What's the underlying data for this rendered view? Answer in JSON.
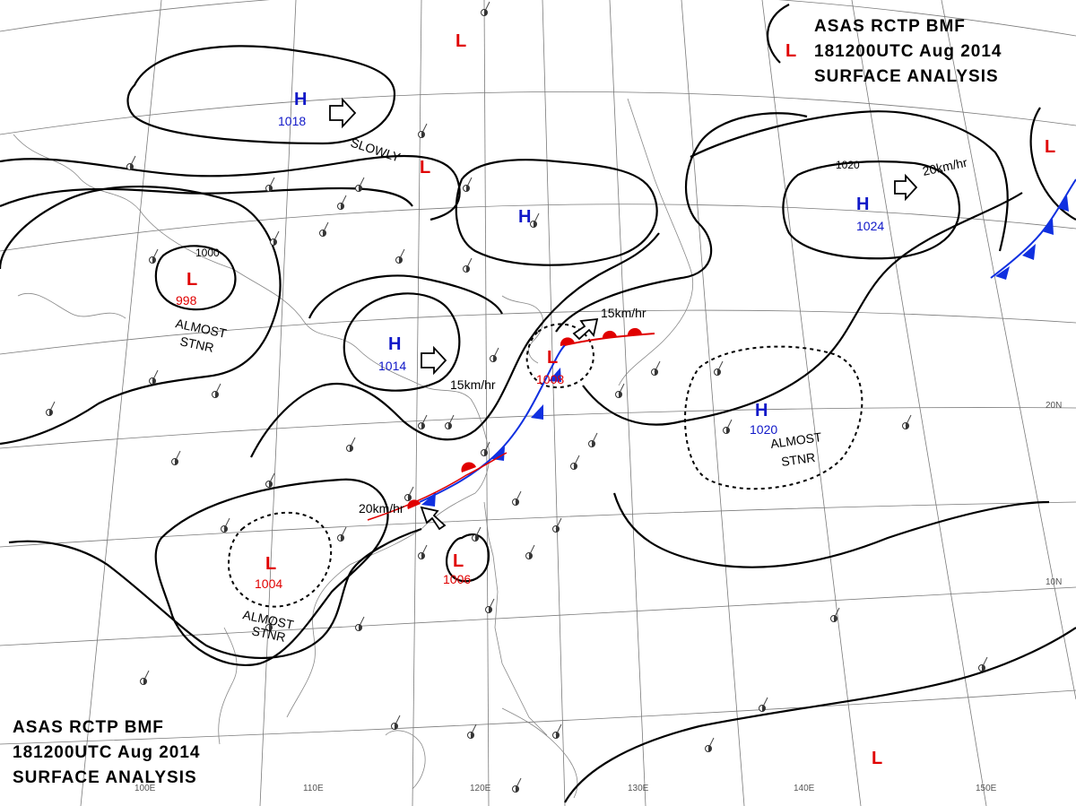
{
  "header_top": {
    "line1": "ASAS    RCTP    BMF",
    "line2": "181200UTC    Aug    2014",
    "line3": "SURFACE  ANALYSIS"
  },
  "header_bottom": {
    "line1": "ASAS    RCTP    BMF",
    "line2": "181200UTC    Aug    2014",
    "line3": "SURFACE  ANALYSIS"
  },
  "pressure_centers": [
    {
      "type": "H",
      "value": "1018"
    },
    {
      "type": "H",
      "value": "1014"
    },
    {
      "type": "H",
      "value": "1020"
    },
    {
      "type": "H",
      "value": "1024"
    },
    {
      "type": "H",
      "value": ""
    },
    {
      "type": "L",
      "value": "998"
    },
    {
      "type": "L",
      "value": "1008"
    },
    {
      "type": "L",
      "value": "1004"
    },
    {
      "type": "L",
      "value": "1006"
    },
    {
      "type": "L",
      "value": ""
    }
  ],
  "isobar_labels": [
    "1000",
    "1020"
  ],
  "motion_notes": {
    "slowly": "SLOWLY",
    "speed_a": "15km/hr",
    "speed_b": "15km/hr",
    "speed_c": "20km/hr",
    "speed_d": "20km/hr",
    "stnr_a_1": "ALMOST",
    "stnr_a_2": "STNR",
    "stnr_b_1": "ALMOST",
    "stnr_b_2": "STNR",
    "stnr_c_1": "ALMOST",
    "stnr_c_2": "STNR"
  },
  "coordinates": {
    "lon_100": "100E",
    "lon_110": "110E",
    "lon_120": "120E",
    "lon_130": "130E",
    "lon_140": "140E",
    "lon_150": "150E",
    "lat_10": "10N",
    "lat_20": "20N"
  },
  "colors": {
    "high": "#1018c8",
    "low": "#e00000",
    "cold_front": "#1030e0",
    "warm_front": "#e00000",
    "isobar": "#000000"
  }
}
